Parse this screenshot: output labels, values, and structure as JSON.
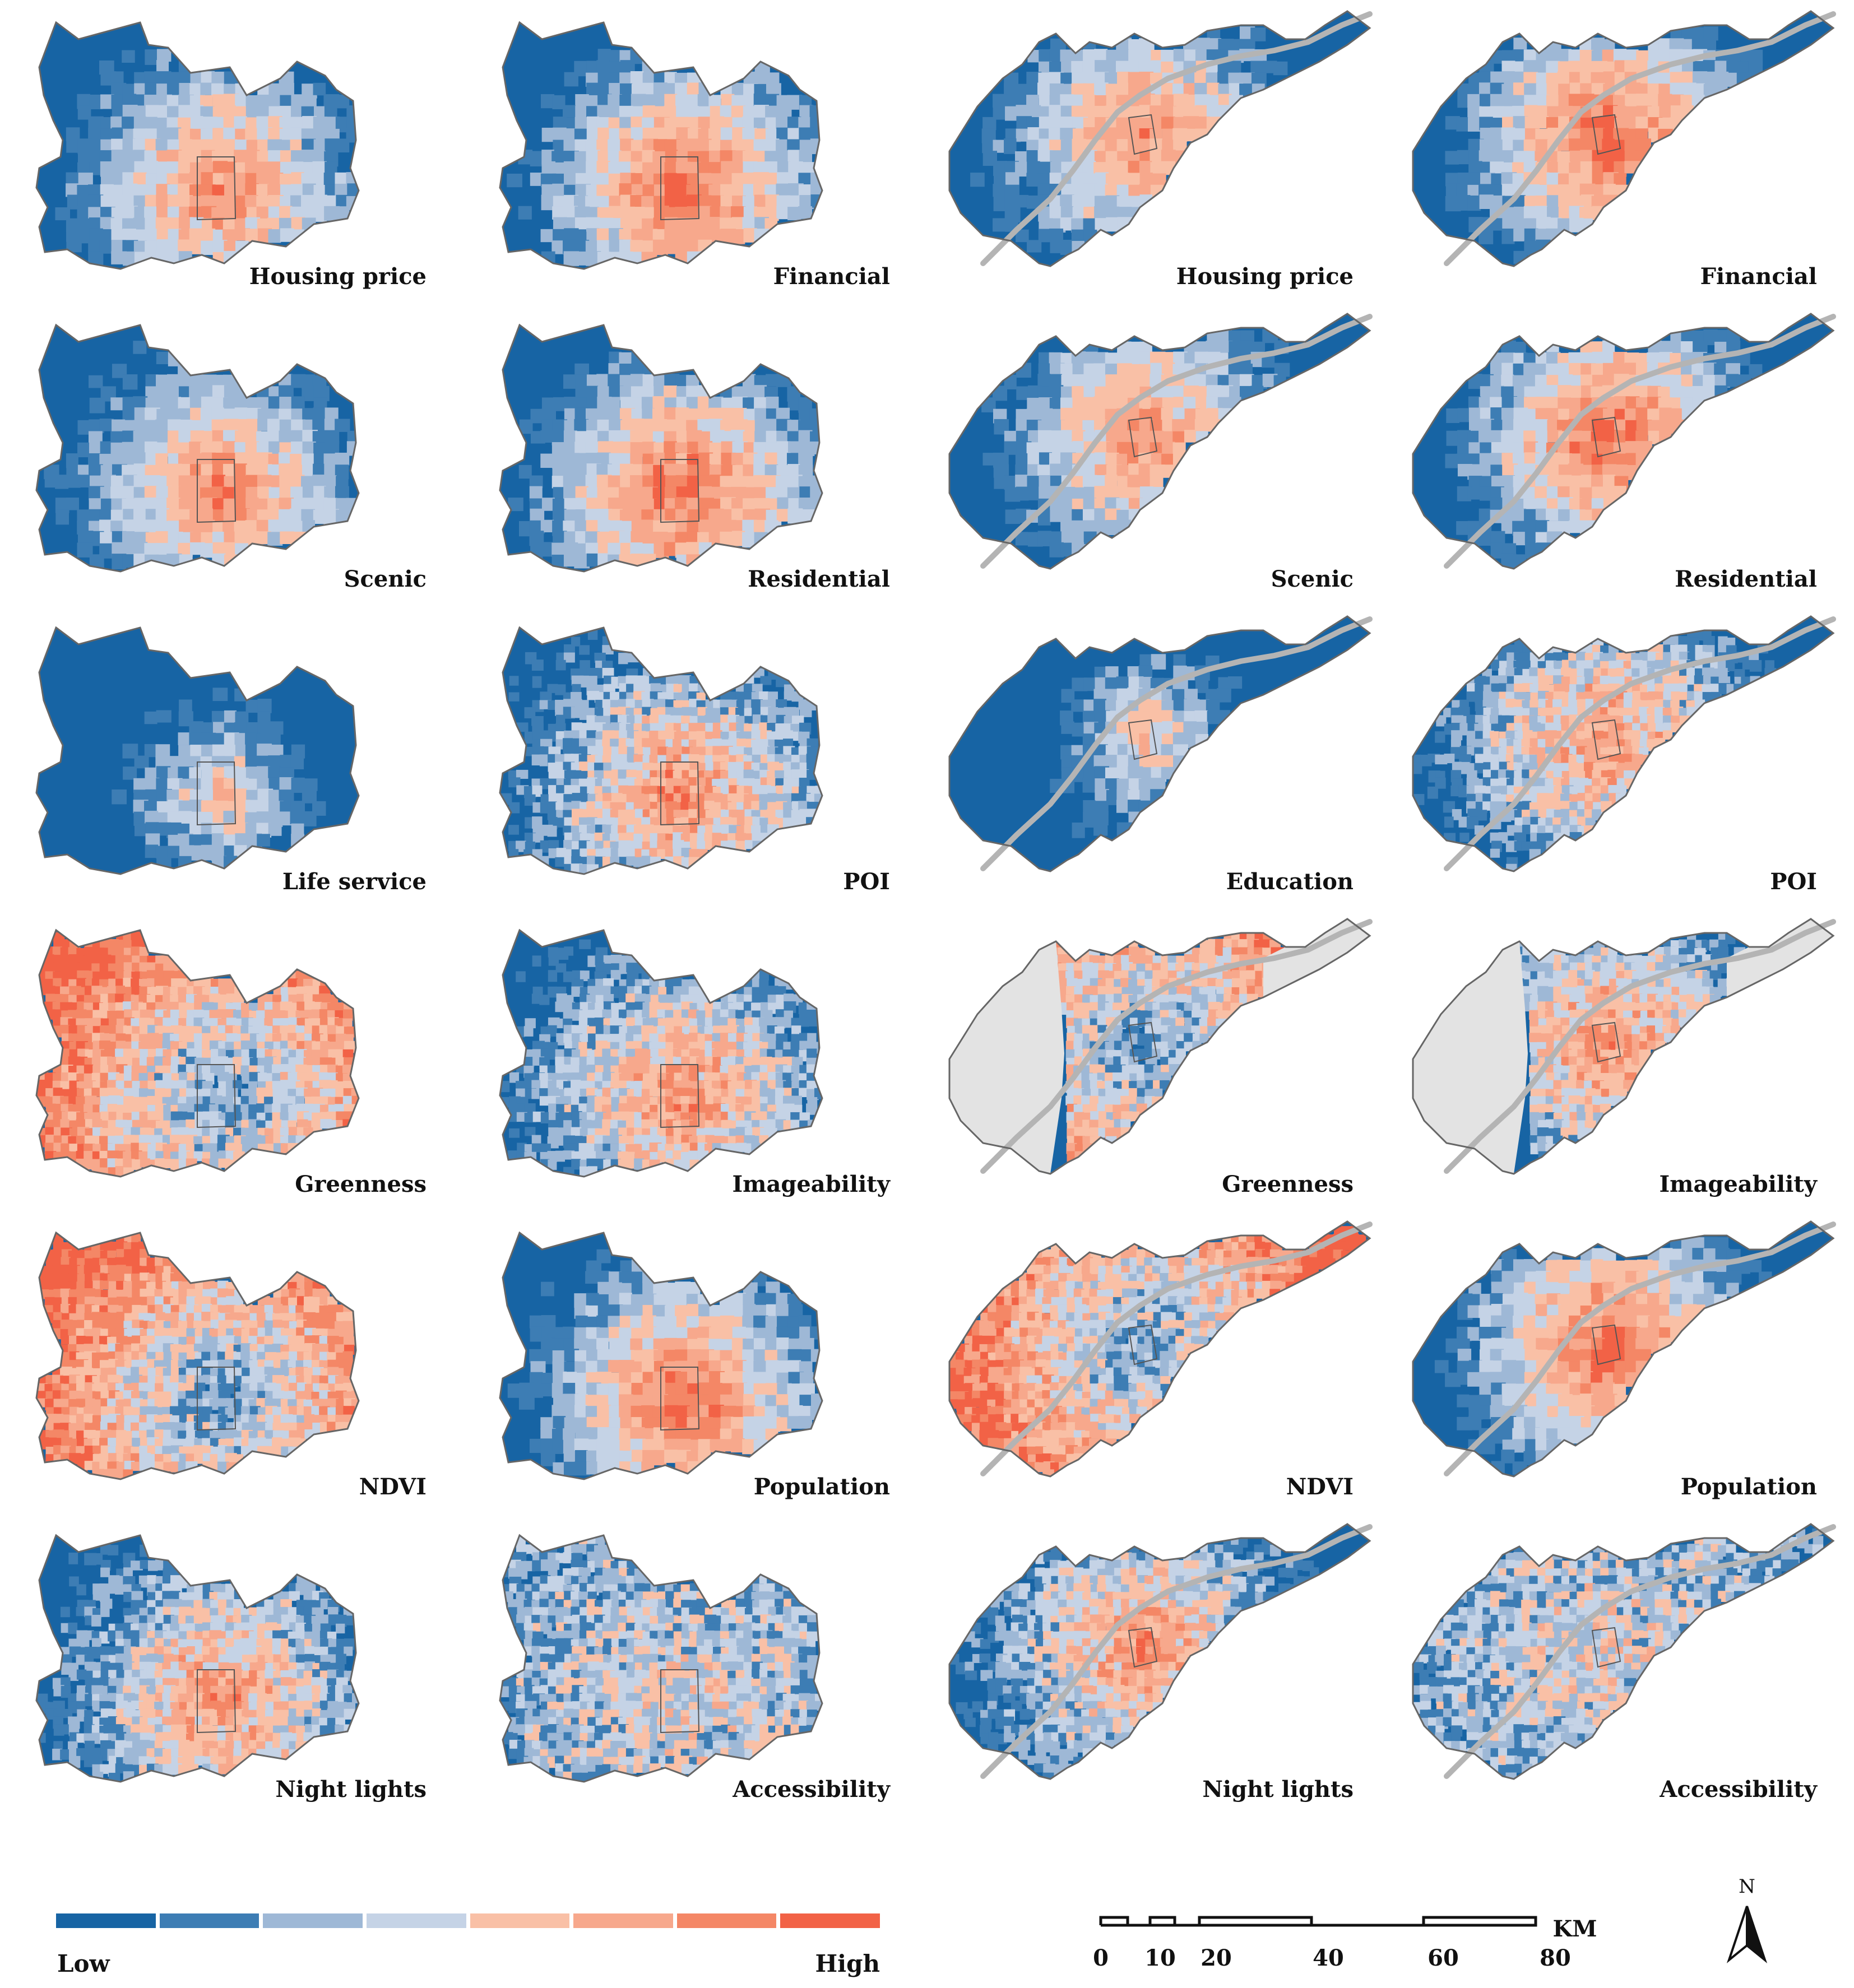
{
  "panels": [
    {
      "label": "Housing price",
      "region": "A"
    },
    {
      "label": "Financial",
      "region": "A"
    },
    {
      "label": "Housing price",
      "region": "B"
    },
    {
      "label": "Financial",
      "region": "B"
    },
    {
      "label": "Scenic",
      "region": "A"
    },
    {
      "label": "Residential",
      "region": "A"
    },
    {
      "label": "Scenic",
      "region": "B"
    },
    {
      "label": "Residential",
      "region": "B"
    },
    {
      "label": "Life service",
      "region": "A"
    },
    {
      "label": "POI",
      "region": "A"
    },
    {
      "label": "Education",
      "region": "B"
    },
    {
      "label": "POI",
      "region": "B"
    },
    {
      "label": "Greenness",
      "region": "A"
    },
    {
      "label": "Imageability",
      "region": "A"
    },
    {
      "label": "Greenness",
      "region": "B"
    },
    {
      "label": "Imageability",
      "region": "B"
    },
    {
      "label": "NDVI",
      "region": "A"
    },
    {
      "label": "Population",
      "region": "A"
    },
    {
      "label": "NDVI",
      "region": "B"
    },
    {
      "label": "Population",
      "region": "B"
    },
    {
      "label": "Night lights",
      "region": "A"
    },
    {
      "label": "Accessibility",
      "region": "A"
    },
    {
      "label": "Night lights",
      "region": "B"
    },
    {
      "label": "Accessibility",
      "region": "B"
    }
  ],
  "legend": {
    "low_label": "Low",
    "high_label": "High",
    "colors": [
      "#1764a4",
      "#3d7db4",
      "#9eb8d6",
      "#c5d3e6",
      "#f9c0a6",
      "#f7a88c",
      "#f48766",
      "#f26246"
    ]
  },
  "scale_bar": {
    "unit": "KM",
    "ticks": [
      "0",
      "10",
      "20",
      "40",
      "60",
      "80"
    ]
  },
  "north_arrow": {
    "label": "N"
  },
  "colors": {
    "nodata": "#e3e3e3",
    "river": "#b4b4b4",
    "outline": "#666666"
  }
}
